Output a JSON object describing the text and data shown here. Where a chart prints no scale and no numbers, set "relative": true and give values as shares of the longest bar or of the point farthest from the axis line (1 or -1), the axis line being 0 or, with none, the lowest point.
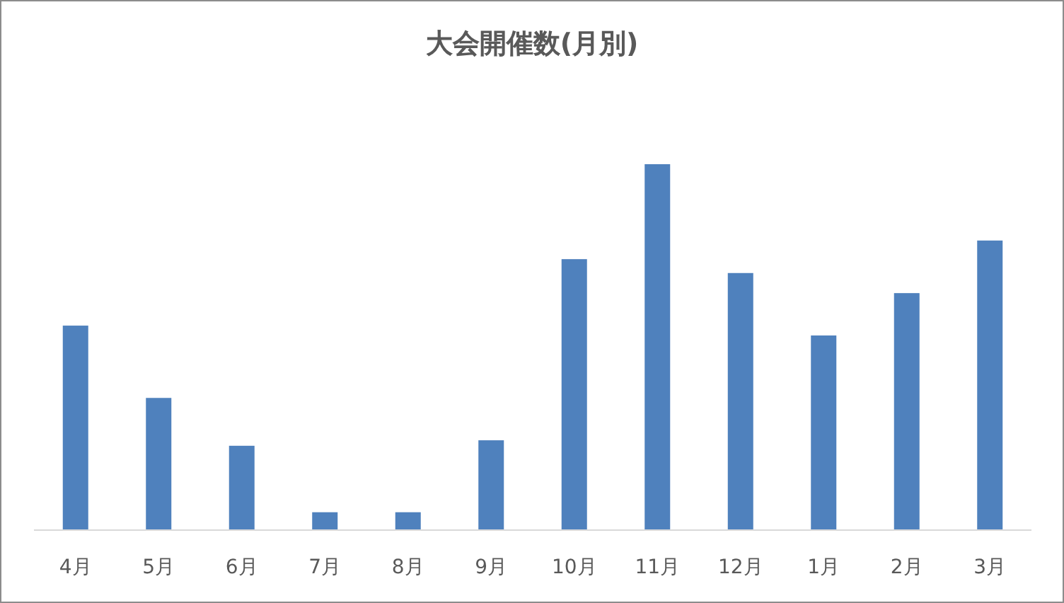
{
  "chart_data": {
    "type": "bar",
    "title": "大会開催数(月別)",
    "categories": [
      "4月",
      "5月",
      "6月",
      "7月",
      "8月",
      "9月",
      "10月",
      "11月",
      "12月",
      "1月",
      "2月",
      "3月"
    ],
    "values": [
      0.558,
      0.36,
      0.229,
      0.047,
      0.047,
      0.244,
      0.74,
      1,
      0.702,
      0.531,
      0.647,
      0.791
    ],
    "color": "#4f81bd",
    "relative": true
  }
}
